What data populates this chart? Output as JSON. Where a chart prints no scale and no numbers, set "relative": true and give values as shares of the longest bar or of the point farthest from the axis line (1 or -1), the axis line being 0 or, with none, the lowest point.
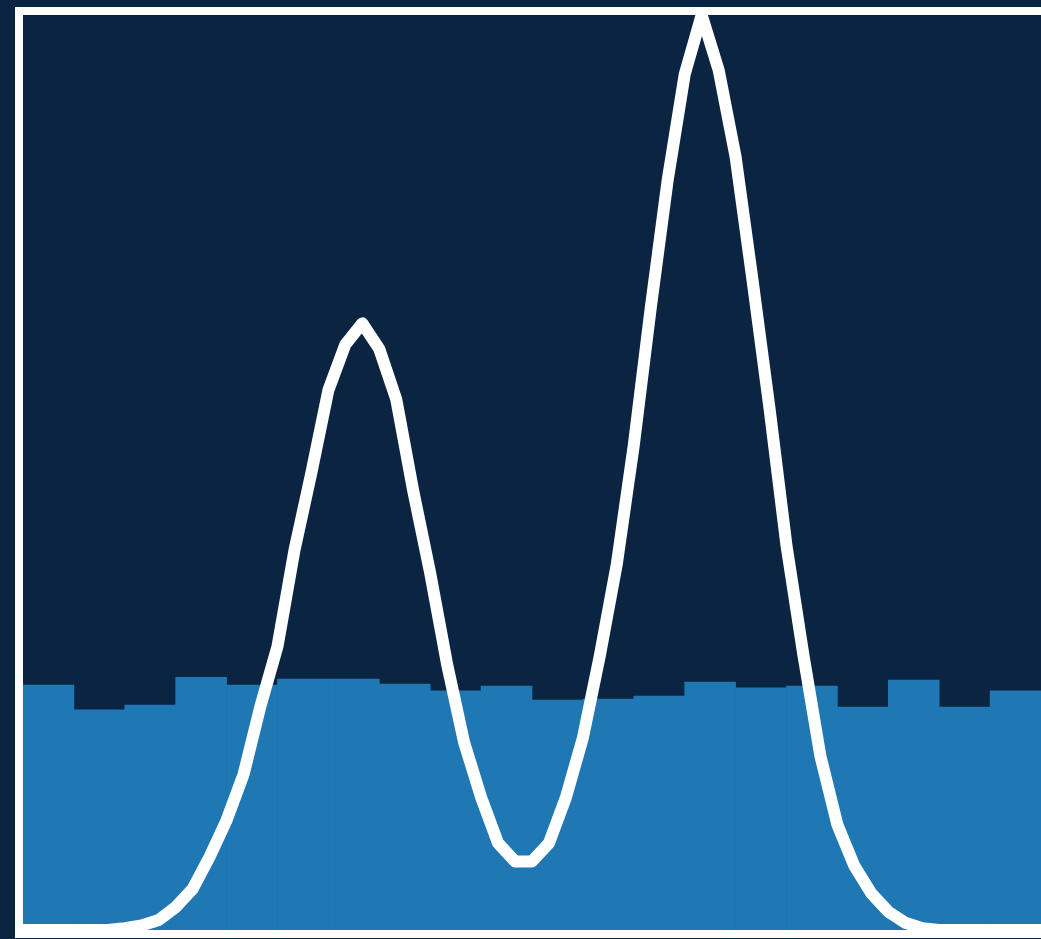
{
  "chart_data": [
    {
      "type": "bar",
      "relative": true,
      "categories": [
        null,
        null,
        null,
        null,
        null,
        null,
        null,
        null,
        null,
        null,
        null,
        null,
        null,
        null,
        null,
        null,
        null,
        null,
        null,
        null
      ],
      "color": "#1f77b4",
      "values": [
        0.968,
        0.87,
        0.889,
        1,
        0.968,
        0.992,
        0.992,
        0.972,
        0.945,
        0.964,
        0.909,
        0.913,
        0.925,
        0.98,
        0.957,
        0.964,
        0.881,
        0.988,
        0.881,
        0.945
      ]
    },
    {
      "type": "line",
      "relative": true,
      "categories": [
        null,
        null,
        null,
        null,
        null,
        null,
        null,
        null,
        null,
        null,
        null,
        null,
        null,
        null,
        null,
        null,
        null,
        null,
        null,
        null,
        null,
        null,
        null,
        null,
        null,
        null,
        null,
        null,
        null,
        null,
        null,
        null,
        null,
        null,
        null,
        null,
        null,
        null,
        null,
        null,
        null,
        null,
        null,
        null,
        null,
        null,
        null,
        null,
        null,
        null,
        null,
        null,
        null,
        null,
        null,
        null,
        null,
        null,
        null,
        null,
        null
      ],
      "color": "#ffffff",
      "values": [
        0,
        0,
        0,
        0,
        0,
        0,
        0.002,
        0.005,
        0.011,
        0.025,
        0.045,
        0.08,
        0.12,
        0.17,
        0.245,
        0.31,
        0.415,
        0.5,
        0.59,
        0.64,
        0.663,
        0.635,
        0.58,
        0.48,
        0.39,
        0.29,
        0.205,
        0.145,
        0.095,
        0.075,
        0.075,
        0.095,
        0.145,
        0.21,
        0.3,
        0.4,
        0.53,
        0.68,
        0.82,
        0.935,
        1,
        0.94,
        0.845,
        0.71,
        0.57,
        0.42,
        0.3,
        0.19,
        0.115,
        0.07,
        0.04,
        0.02,
        0.008,
        0.002,
        0,
        0,
        0,
        0,
        0,
        0,
        0
      ]
    }
  ]
}
